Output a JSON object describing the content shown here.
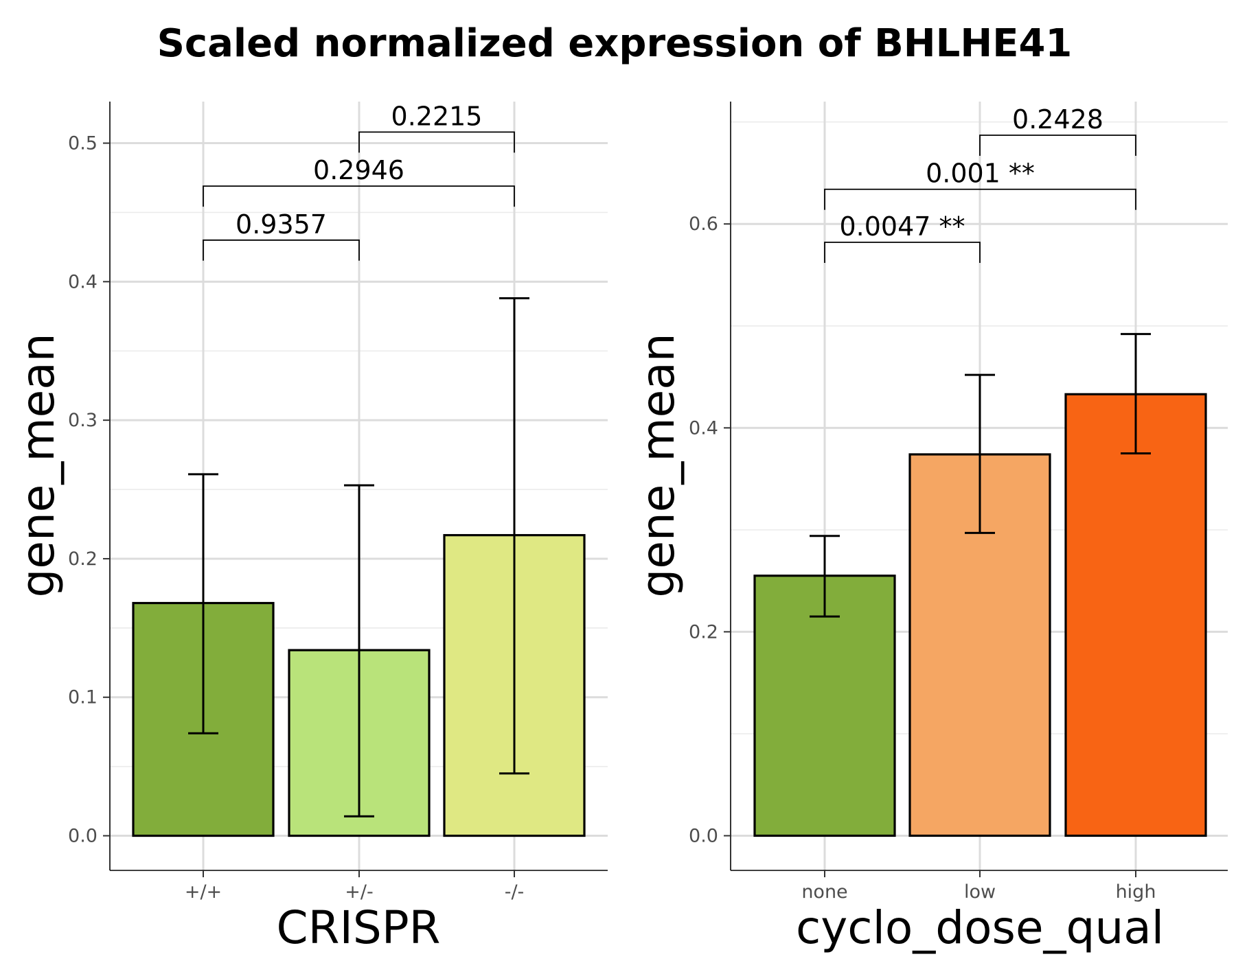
{
  "title": "Scaled normalized expression of BHLHE41",
  "chart_data": [
    {
      "type": "bar",
      "xlabel": "CRISPR",
      "ylabel": "gene_mean",
      "categories": [
        "+/+",
        "+/-",
        "-/-"
      ],
      "values": [
        0.168,
        0.134,
        0.217
      ],
      "error_low": [
        0.074,
        0.014,
        0.045
      ],
      "error_high": [
        0.261,
        0.253,
        0.388
      ],
      "colors": [
        "#82ad3b",
        "#b9e37a",
        "#dfe883"
      ],
      "ylim": [
        -0.025,
        0.53
      ],
      "yticks": [
        0.0,
        0.1,
        0.2,
        0.3,
        0.4,
        0.5
      ],
      "ytick_labels": [
        "0.0",
        "0.1",
        "0.2",
        "0.3",
        "0.4",
        "0.5"
      ],
      "comparisons": [
        {
          "from": 0,
          "to": 1,
          "label": "0.9357",
          "y": 0.43
        },
        {
          "from": 0,
          "to": 2,
          "label": "0.2946",
          "y": 0.469
        },
        {
          "from": 1,
          "to": 2,
          "label": "0.2215",
          "y": 0.508
        }
      ],
      "grid": true
    },
    {
      "type": "bar",
      "xlabel": "cyclo_dose_qual",
      "ylabel": "gene_mean",
      "categories": [
        "none",
        "low",
        "high"
      ],
      "values": [
        0.255,
        0.374,
        0.433
      ],
      "error_low": [
        0.215,
        0.297,
        0.375
      ],
      "error_high": [
        0.294,
        0.452,
        0.492
      ],
      "colors": [
        "#82ad3b",
        "#f5a663",
        "#f86414"
      ],
      "ylim": [
        -0.034,
        0.72
      ],
      "yticks": [
        0.0,
        0.2,
        0.4,
        0.6
      ],
      "ytick_labels": [
        "0.0",
        "0.2",
        "0.4",
        "0.6"
      ],
      "comparisons": [
        {
          "from": 0,
          "to": 1,
          "label": "0.0047 **",
          "y": 0.582
        },
        {
          "from": 0,
          "to": 2,
          "label": "0.001 **",
          "y": 0.634
        },
        {
          "from": 1,
          "to": 2,
          "label": "0.2428",
          "y": 0.687
        }
      ],
      "grid": true
    }
  ]
}
